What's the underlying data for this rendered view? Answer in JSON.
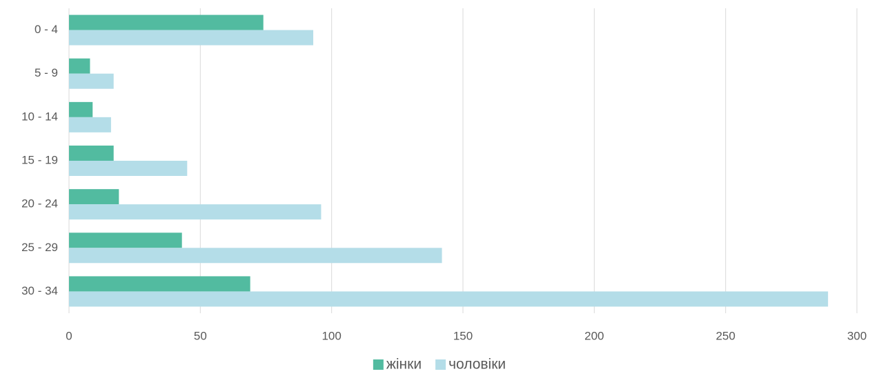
{
  "chart_data": {
    "type": "bar",
    "orientation": "horizontal",
    "categories": [
      "0 - 4",
      "5 - 9",
      "10 - 14",
      "15 - 19",
      "20 - 24",
      "25 - 29",
      "30 - 34"
    ],
    "series": [
      {
        "name": "жінки",
        "color": "#52bba0",
        "values": [
          74,
          8,
          9,
          17,
          19,
          43,
          69
        ]
      },
      {
        "name": "чоловіки",
        "color": "#b4dde8",
        "values": [
          93,
          17,
          16,
          45,
          96,
          142,
          289
        ]
      }
    ],
    "xlim": [
      0,
      300
    ],
    "xticks": [
      0,
      50,
      100,
      150,
      200,
      250,
      300
    ],
    "grid": true,
    "legend": "bottom"
  }
}
